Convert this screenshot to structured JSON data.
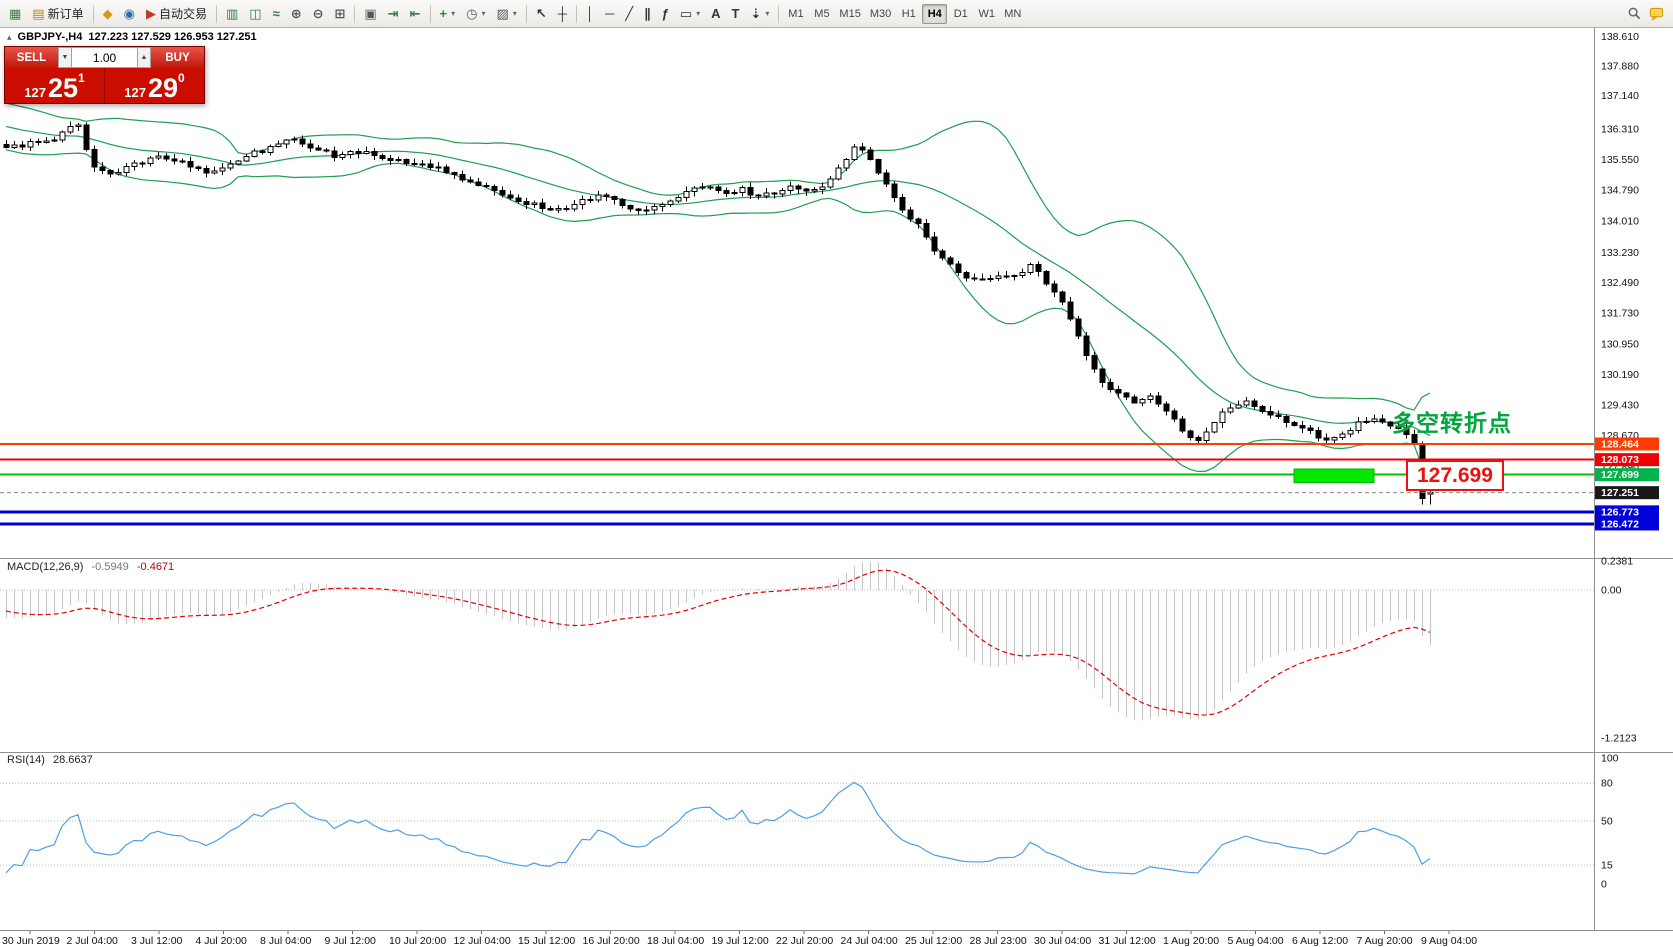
{
  "toolbar": {
    "items": [
      {
        "name": "new-chart-button",
        "glyph": "▦",
        "color": "#3a7d44"
      },
      {
        "name": "new-order-button",
        "glyph": "▤",
        "color": "#b8860b",
        "label": "新订单"
      },
      {
        "sep": true
      },
      {
        "name": "profiles-button",
        "glyph": "◆",
        "color": "#d49a1a"
      },
      {
        "name": "data-window-button",
        "glyph": "◉",
        "color": "#2b6cb0"
      },
      {
        "name": "autotrading-button",
        "glyph": "▶",
        "color": "#c0392b",
        "label": "自动交易"
      },
      {
        "sep": true
      },
      {
        "name": "bar-chart-button",
        "glyph": "▥",
        "color": "#2e7d4f"
      },
      {
        "name": "candlestick-chart-button",
        "glyph": "◫",
        "color": "#2e7d4f"
      },
      {
        "name": "line-chart-button",
        "glyph": "≈",
        "color": "#2e7d4f"
      },
      {
        "name": "zoom-in-button",
        "glyph": "⊕",
        "color": "#555555"
      },
      {
        "name": "zoom-out-button",
        "glyph": "⊖",
        "color": "#555555"
      },
      {
        "name": "tile-windows-button",
        "glyph": "⊞",
        "color": "#555555"
      },
      {
        "sep": true
      },
      {
        "name": "auto-arrange-button",
        "glyph": "▣",
        "color": "#555555"
      },
      {
        "name": "chart-shift-button",
        "glyph": "⇥",
        "color": "#2e7d4f"
      },
      {
        "name": "auto-scroll-button",
        "glyph": "⇤",
        "color": "#2e7d4f"
      },
      {
        "sep": true
      },
      {
        "name": "indicators-button",
        "glyph": "+",
        "color": "#1e8e3e",
        "caret": true
      },
      {
        "name": "periods-button",
        "glyph": "◷",
        "color": "#555555",
        "caret": true
      },
      {
        "name": "templates-button",
        "glyph": "▨",
        "color": "#555555",
        "caret": true
      },
      {
        "sep": true
      },
      {
        "name": "cursor-button",
        "glyph": "↖",
        "color": "#333333"
      },
      {
        "name": "crosshair-button",
        "glyph": "┼",
        "color": "#333333"
      },
      {
        "sep": true
      },
      {
        "name": "vertical-line-button",
        "glyph": "│",
        "color": "#333333"
      },
      {
        "name": "horizontal-line-button",
        "glyph": "─",
        "color": "#333333"
      },
      {
        "name": "trendline-button",
        "glyph": "╱",
        "color": "#333333"
      },
      {
        "name": "channel-button",
        "glyph": "∥",
        "color": "#333333"
      },
      {
        "name": "fibonacci-button",
        "glyph": "ƒ",
        "color": "#333333"
      },
      {
        "name": "shapes-button",
        "glyph": "▭",
        "color": "#333333",
        "caret": true
      },
      {
        "name": "text-button",
        "glyph": "A",
        "color": "#333333"
      },
      {
        "name": "text-label-button",
        "glyph": "T",
        "color": "#333333"
      },
      {
        "name": "arrows-button",
        "glyph": "⇣",
        "color": "#333333",
        "caret": true
      },
      {
        "sep": true
      },
      {
        "name": "timeframe-m1-button",
        "label": "M1",
        "tf": true
      },
      {
        "name": "timeframe-m5-button",
        "label": "M5",
        "tf": true
      },
      {
        "name": "timeframe-m15-button",
        "label": "M15",
        "tf": true
      },
      {
        "name": "timeframe-m30-button",
        "label": "M30",
        "tf": true
      },
      {
        "name": "timeframe-h1-button",
        "label": "H1",
        "tf": true
      },
      {
        "name": "timeframe-h4-button",
        "label": "H4",
        "tf": true,
        "active": true
      },
      {
        "name": "timeframe-d1-button",
        "label": "D1",
        "tf": true
      },
      {
        "name": "timeframe-w1-button",
        "label": "W1",
        "tf": true
      },
      {
        "name": "timeframe-mn-button",
        "label": "MN",
        "tf": true
      }
    ]
  },
  "symbol_info": {
    "marker": "▴",
    "symbol": "GBPJPY-,H4",
    "ohlc": "127.223 127.529 126.953 127.251"
  },
  "trade_panel": {
    "sell_label": "SELL",
    "buy_label": "BUY",
    "lot": "1.00",
    "dec_icon": "▼",
    "inc_icon": "▲",
    "sell_price_prefix": "127",
    "sell_price_pips": "25",
    "sell_price_pipette": "1",
    "buy_price_prefix": "127",
    "buy_price_pips": "29",
    "buy_price_pipette": "0"
  },
  "annotation": {
    "text": "多空转折点",
    "price_callout": "127.699"
  },
  "macd_label": {
    "name": "MACD(12,26,9)",
    "value_main": "-0.5949",
    "value_signal": "-0.4671"
  },
  "rsi_label": {
    "name": "RSI(14)",
    "value": "28.6637"
  },
  "chart_data": {
    "type": "candlestick",
    "symbol": "GBPJPY",
    "timeframe": "H4",
    "current_ohlc": {
      "open": 127.223,
      "high": 127.529,
      "low": 126.953,
      "close": 127.251
    },
    "prev_ohlc": {
      "open": 128.46,
      "high": 128.52,
      "low": 126.96,
      "close": 127.1
    },
    "current_price": 127.251,
    "candle_last": 178,
    "warmup": 20,
    "price_path": [
      [
        -20,
        136.8
      ],
      [
        -14,
        136.6
      ],
      [
        -8,
        136.4
      ],
      [
        -3,
        136.0
      ],
      [
        0,
        135.85
      ],
      [
        3,
        135.95
      ],
      [
        6,
        136.05
      ],
      [
        8,
        136.35
      ],
      [
        9,
        136.45
      ],
      [
        10,
        135.8
      ],
      [
        11,
        135.4
      ],
      [
        13,
        135.2
      ],
      [
        16,
        135.45
      ],
      [
        19,
        135.6
      ],
      [
        22,
        135.5
      ],
      [
        25,
        135.2
      ],
      [
        28,
        135.45
      ],
      [
        31,
        135.7
      ],
      [
        34,
        135.95
      ],
      [
        36,
        136.05
      ],
      [
        38,
        135.8
      ],
      [
        41,
        135.65
      ],
      [
        44,
        135.75
      ],
      [
        47,
        135.6
      ],
      [
        50,
        135.5
      ],
      [
        53,
        135.4
      ],
      [
        56,
        135.15
      ],
      [
        59,
        134.95
      ],
      [
        62,
        134.7
      ],
      [
        65,
        134.45
      ],
      [
        68,
        134.3
      ],
      [
        70,
        134.25
      ],
      [
        72,
        134.55
      ],
      [
        74,
        134.65
      ],
      [
        76,
        134.5
      ],
      [
        78,
        134.35
      ],
      [
        80,
        134.3
      ],
      [
        82,
        134.4
      ],
      [
        84,
        134.65
      ],
      [
        86,
        134.9
      ],
      [
        88,
        134.85
      ],
      [
        90,
        134.7
      ],
      [
        92,
        134.8
      ],
      [
        94,
        134.65
      ],
      [
        96,
        134.7
      ],
      [
        98,
        134.85
      ],
      [
        100,
        134.8
      ],
      [
        102,
        134.9
      ],
      [
        104,
        135.3
      ],
      [
        106,
        135.85
      ],
      [
        108,
        135.6
      ],
      [
        110,
        134.9
      ],
      [
        112,
        134.3
      ],
      [
        114,
        133.9
      ],
      [
        116,
        133.3
      ],
      [
        118,
        132.9
      ],
      [
        120,
        132.6
      ],
      [
        122,
        132.5
      ],
      [
        124,
        132.7
      ],
      [
        126,
        132.6
      ],
      [
        128,
        132.9
      ],
      [
        130,
        132.5
      ],
      [
        131,
        132.3
      ],
      [
        133,
        131.6
      ],
      [
        135,
        130.7
      ],
      [
        137,
        130.0
      ],
      [
        139,
        129.7
      ],
      [
        141,
        129.5
      ],
      [
        143,
        129.7
      ],
      [
        145,
        129.3
      ],
      [
        147,
        128.8
      ],
      [
        149,
        128.5
      ],
      [
        151,
        129.0
      ],
      [
        153,
        129.4
      ],
      [
        155,
        129.55
      ],
      [
        157,
        129.3
      ],
      [
        159,
        129.1
      ],
      [
        161,
        128.9
      ],
      [
        163,
        128.75
      ],
      [
        165,
        128.6
      ],
      [
        167,
        128.7
      ],
      [
        169,
        128.95
      ],
      [
        171,
        129.05
      ],
      [
        173,
        128.9
      ],
      [
        175,
        128.7
      ],
      [
        176,
        128.5
      ],
      [
        177,
        127.15
      ],
      [
        178,
        127.251
      ]
    ],
    "hlines": [
      {
        "price": 128.464,
        "color": "#ff3c00",
        "width": 2
      },
      {
        "price": 128.073,
        "color": "#f00000",
        "width": 2
      },
      {
        "price": 127.699,
        "color": "#00c000",
        "width": 2
      },
      {
        "price": 126.773,
        "color": "#0000d8",
        "width": 3
      },
      {
        "price": 126.472,
        "color": "#0000d8",
        "width": 3
      }
    ],
    "green_box": {
      "candle_start": 161,
      "candle_end": 171,
      "price_top": 127.84,
      "price_bottom": 127.5
    },
    "indicators": {
      "bollinger": {
        "period": 20,
        "deviation": 2
      },
      "macd": {
        "fast": 12,
        "slow": 26,
        "signal": 9,
        "main": -0.5949,
        "signal_value": -0.4671
      },
      "rsi": {
        "period": 14,
        "value": 28.6637,
        "levels": [
          80,
          50,
          15
        ]
      }
    },
    "price_axis_labels": [
      "138.610",
      "137.880",
      "137.140",
      "136.310",
      "135.550",
      "134.790",
      "134.010",
      "133.230",
      "132.490",
      "131.730",
      "130.950",
      "130.190",
      "129.430",
      "128.670",
      "127.890"
    ],
    "price_tags": [
      {
        "value": "128.464",
        "color": "#ff3c00"
      },
      {
        "value": "128.073",
        "color": "#f00000"
      },
      {
        "value": "127.699",
        "color": "#00b44b"
      },
      {
        "value": "127.251",
        "color": "#181818"
      },
      {
        "value": "126.773",
        "color": "#0000d8"
      },
      {
        "value": "126.472",
        "color": "#0000d8"
      }
    ],
    "macd_axis": [
      "0.2381",
      "0.00",
      "-1.2123"
    ],
    "rsi_axis": [
      "100",
      "80",
      "50",
      "15",
      "0"
    ],
    "date_labels": [
      "30 Jun 2019",
      "2 Jul 04:00",
      "3 Jul 12:00",
      "4 Jul 20:00",
      "8 Jul 04:00",
      "9 Jul 12:00",
      "10 Jul 20:00",
      "12 Jul 04:00",
      "15 Jul 12:00",
      "16 Jul 20:00",
      "18 Jul 04:00",
      "19 Jul 12:00",
      "22 Jul 20:00",
      "24 Jul 04:00",
      "25 Jul 12:00",
      "28 Jul 23:00",
      "30 Jul 04:00",
      "31 Jul 12:00",
      "1 Aug 20:00",
      "5 Aug 04:00",
      "6 Aug 12:00",
      "7 Aug 20:00",
      "9 Aug 04:00"
    ]
  },
  "colors": {
    "bands": "#1e9e50",
    "macd_hist": "#c4c4c4",
    "macd_signal": "#e60000",
    "rsi_line": "#4d9fe8",
    "annotation": "#00a53e",
    "callout": "#f01010",
    "green_box": "#00e800"
  }
}
